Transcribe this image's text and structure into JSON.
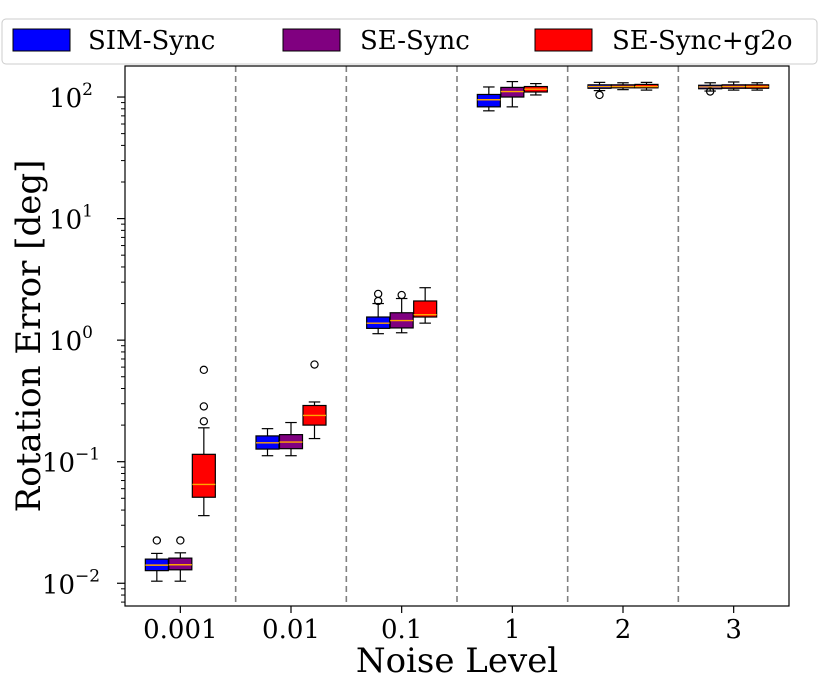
{
  "chart_data": {
    "type": "box",
    "xlabel": "Noise Level",
    "ylabel": "Rotation Error [deg]",
    "yscale": "log",
    "ylim": [
      0.0065,
      180
    ],
    "categories": [
      "0.001",
      "0.01",
      "0.1",
      "1",
      "2",
      "3"
    ],
    "y_ticks": [
      {
        "base": "10",
        "exp": "−2",
        "value": 0.01
      },
      {
        "base": "10",
        "exp": "−1",
        "value": 0.1
      },
      {
        "base": "10",
        "exp": "0",
        "value": 1
      },
      {
        "base": "10",
        "exp": "1",
        "value": 10
      },
      {
        "base": "10",
        "exp": "2",
        "value": 100
      }
    ],
    "grid": false,
    "separators": "dashed vertical lines between noise levels",
    "legend": {
      "placement": "top",
      "columns": 3
    },
    "series": [
      {
        "name": "SIM-Sync",
        "color": "#0000ff",
        "boxes": [
          {
            "whislo": 0.0104,
            "q1": 0.0127,
            "med": 0.0141,
            "q3": 0.0158,
            "whishi": 0.0176,
            "fliers": [
              0.0225
            ]
          },
          {
            "whislo": 0.112,
            "q1": 0.127,
            "med": 0.143,
            "q3": 0.163,
            "whishi": 0.187,
            "fliers": []
          },
          {
            "whislo": 1.13,
            "q1": 1.25,
            "med": 1.38,
            "q3": 1.55,
            "whishi": 2.0,
            "fliers": [
              2.1,
              2.4
            ]
          },
          {
            "whislo": 77,
            "q1": 83,
            "med": 95,
            "q3": 105,
            "whishi": 121,
            "fliers": []
          },
          {
            "whislo": 113,
            "q1": 118,
            "med": 122,
            "q3": 126,
            "whishi": 132,
            "fliers": [
              104
            ]
          },
          {
            "whislo": 112,
            "q1": 117,
            "med": 121,
            "q3": 125,
            "whishi": 131,
            "fliers": [
              111
            ]
          }
        ]
      },
      {
        "name": "SE-Sync",
        "color": "#800080",
        "boxes": [
          {
            "whislo": 0.0104,
            "q1": 0.0129,
            "med": 0.0142,
            "q3": 0.0161,
            "whishi": 0.0178,
            "fliers": [
              0.0225
            ]
          },
          {
            "whislo": 0.112,
            "q1": 0.128,
            "med": 0.145,
            "q3": 0.167,
            "whishi": 0.21,
            "fliers": []
          },
          {
            "whislo": 1.15,
            "q1": 1.26,
            "med": 1.45,
            "q3": 1.68,
            "whishi": 2.2,
            "fliers": [
              2.35
            ]
          },
          {
            "whislo": 83,
            "q1": 100,
            "med": 111,
            "q3": 120,
            "whishi": 134,
            "fliers": []
          },
          {
            "whislo": 115,
            "q1": 119,
            "med": 122,
            "q3": 126,
            "whishi": 131,
            "fliers": []
          },
          {
            "whislo": 114,
            "q1": 118,
            "med": 122,
            "q3": 126,
            "whishi": 133,
            "fliers": []
          }
        ]
      },
      {
        "name": "SE-Sync+g2o",
        "color": "#ff0000",
        "boxes": [
          {
            "whislo": 0.036,
            "q1": 0.051,
            "med": 0.065,
            "q3": 0.115,
            "whishi": 0.19,
            "fliers": [
              0.215,
              0.285,
              0.57
            ]
          },
          {
            "whislo": 0.155,
            "q1": 0.2,
            "med": 0.24,
            "q3": 0.29,
            "whishi": 0.31,
            "fliers": [
              0.63
            ]
          },
          {
            "whislo": 1.38,
            "q1": 1.55,
            "med": 1.62,
            "q3": 2.1,
            "whishi": 2.7,
            "fliers": []
          },
          {
            "whislo": 104,
            "q1": 110,
            "med": 116,
            "q3": 122,
            "whishi": 129,
            "fliers": []
          },
          {
            "whislo": 114,
            "q1": 119,
            "med": 122,
            "q3": 127,
            "whishi": 132,
            "fliers": []
          },
          {
            "whislo": 114,
            "q1": 118,
            "med": 122,
            "q3": 126,
            "whishi": 131,
            "fliers": []
          }
        ]
      }
    ]
  },
  "colors": {
    "median_line": "#ffa500",
    "separator": "#808080",
    "axis": "#000000"
  }
}
